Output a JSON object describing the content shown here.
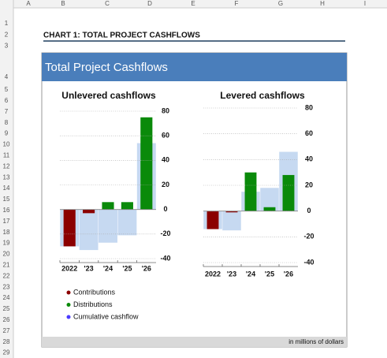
{
  "sheet": {
    "columns": [
      "A",
      "B",
      "C",
      "D",
      "E",
      "F",
      "G",
      "H",
      "I"
    ],
    "rows": [
      "1",
      "2",
      "3",
      "4",
      "5",
      "6",
      "7",
      "8",
      "9",
      "10",
      "11",
      "12",
      "13",
      "14",
      "15",
      "16",
      "17",
      "18",
      "19",
      "20",
      "21",
      "22",
      "23",
      "24",
      "25",
      "26",
      "27",
      "28",
      "29"
    ],
    "heading": "CHART 1: TOTAL PROJECT CASHFLOWS"
  },
  "panel": {
    "title": "Total Project Cashflows",
    "footnote": "in millions of dollars"
  },
  "chart_data": [
    {
      "type": "bar",
      "title": "Unlevered cashflows",
      "categories": [
        "2022",
        "'23",
        "'24",
        "'25",
        "'26"
      ],
      "series": [
        {
          "name": "Contributions",
          "color": "#8b0000",
          "values": [
            -30,
            -3,
            null,
            null,
            null
          ]
        },
        {
          "name": "Distributions",
          "color": "#0a8a0a",
          "values": [
            null,
            null,
            6,
            6,
            75
          ]
        },
        {
          "name": "Cumulative cashflow",
          "color": "#c6d9f1",
          "values": [
            -30,
            -33,
            -27,
            -21,
            54
          ]
        }
      ],
      "ylim": [
        -40,
        80
      ],
      "yticks": [
        80,
        60,
        40,
        20,
        0,
        -20,
        -40
      ],
      "grid": true
    },
    {
      "type": "bar",
      "title": "Levered cashflows",
      "categories": [
        "2022",
        "'23",
        "'24",
        "'25",
        "'26"
      ],
      "series": [
        {
          "name": "Contributions",
          "color": "#8b0000",
          "values": [
            -14,
            -1,
            null,
            null,
            null
          ]
        },
        {
          "name": "Distributions",
          "color": "#0a8a0a",
          "values": [
            null,
            null,
            30,
            3,
            28
          ]
        },
        {
          "name": "Cumulative cashflow",
          "color": "#c6d9f1",
          "values": [
            -14,
            -15,
            15,
            18,
            46
          ]
        }
      ],
      "ylim": [
        -40,
        80
      ],
      "yticks": [
        80,
        60,
        40,
        20,
        0,
        -20,
        -40
      ],
      "grid": true
    }
  ]
}
